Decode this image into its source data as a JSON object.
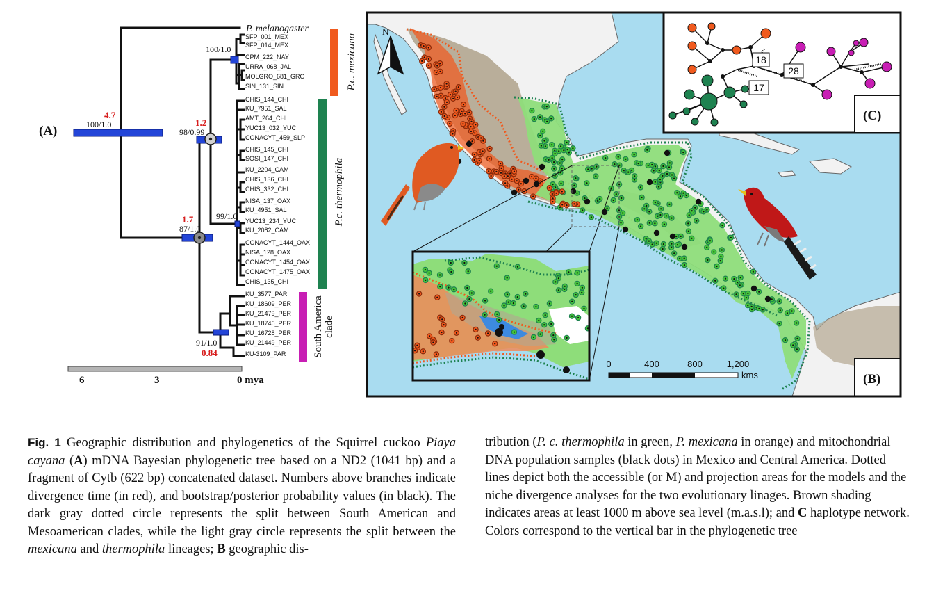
{
  "tree": {
    "panel_label": "(A)",
    "outgroup": "P. melanogaster",
    "taxa": [
      "SFP_001_MEX",
      "SFP_014_MEX",
      "CPM_222_NAY",
      "URRA_068_JAL",
      "MOLGRO_681_GRO",
      "SIN_131_SIN",
      "CHIS_144_CHI",
      "KU_7951_SAL",
      "AMT_264_CHI",
      "YUC13_032_YUC",
      "CONACYT_459_SLP",
      "CHIS_145_CHI",
      "SOSI_147_CHI",
      "KU_2204_CAM",
      "CHIS_136_CHI",
      "CHIS_332_CHI",
      "NISA_137_OAX",
      "KU_4951_SAL",
      "YUC13_234_YUC",
      "KU_2082_CAM",
      "CONACYT_1444_OAX",
      "NISA_128_OAX",
      "CONACYT_1454_OAX",
      "CONACYT_1475_OAX",
      "CHIS_135_CHI",
      "KU_3577_PAR",
      "KU_18609_PER",
      "KU_21479_PER",
      "KU_18746_PER",
      "KU_16728_PER",
      "KU_21449_PER",
      "KU-3109_PAR"
    ],
    "node_labels": [
      {
        "time": "4.7",
        "support": "100/1.0"
      },
      {
        "time": "1.2",
        "support": "98/0.99"
      },
      {
        "time": "1.7",
        "support": "87/1.0"
      },
      {
        "time": "",
        "support": "100/1.0"
      },
      {
        "time": "",
        "support": "99/1.0"
      },
      {
        "time": "0.84",
        "support": "91/1.0"
      }
    ],
    "clades": [
      {
        "label": "P.c. mexicana",
        "color": "#f05a1e"
      },
      {
        "label": "P.c. thermophila",
        "color": "#1e8250"
      },
      {
        "label": "South America\nclade",
        "color": "#c81eb4"
      }
    ],
    "scale_ticks": [
      "6",
      "3",
      "0 mya"
    ]
  },
  "map": {
    "panel_label": "(B)",
    "north": "N",
    "scale_ticks": [
      "0",
      "400",
      "800",
      "1,200"
    ],
    "scale_unit": "kms",
    "colors": {
      "sea": "#a9dcf0",
      "land": "#f4f4f4",
      "highland": "#b3a690",
      "mexicana": "#f05a1e",
      "thermophila": "#45c43a",
      "sample": "#111111"
    }
  },
  "network": {
    "panel_label": "(C)",
    "steps": [
      "18",
      "28",
      "17"
    ],
    "colors": {
      "mexicana": "#f05a1e",
      "thermophila": "#1e8250",
      "south_america": "#c81eb4"
    }
  },
  "caption": {
    "label": "Fig. 1",
    "left": [
      {
        "t": " Geographic distribution and phylogenetics of the Squirrel cuckoo ",
        "s": ""
      },
      {
        "t": "Piaya cayana",
        "s": "i"
      },
      {
        "t": " (",
        "s": ""
      },
      {
        "t": "A",
        "s": "b"
      },
      {
        "t": ") mDNA Bayesian phylogenetic tree based on a ND2 (1041 bp) and a fragment of Cytb (622 bp) concatenated dataset. Numbers above branches indicate divergence time (in red), and bootstrap/posterior probability values (in black). The dark gray dotted circle represents the split between South American and Mesoamerican clades, while the light gray circle represents the split between the ",
        "s": ""
      },
      {
        "t": "mexicana",
        "s": "i"
      },
      {
        "t": " and ",
        "s": ""
      },
      {
        "t": "thermophila",
        "s": "i"
      },
      {
        "t": " lineages; ",
        "s": ""
      },
      {
        "t": "B",
        "s": "b"
      },
      {
        "t": " geographic dis-",
        "s": ""
      }
    ],
    "right": [
      {
        "t": "tribution (",
        "s": ""
      },
      {
        "t": "P. c. thermophila",
        "s": "i"
      },
      {
        "t": " in green, ",
        "s": ""
      },
      {
        "t": "P. mexicana",
        "s": "i"
      },
      {
        "t": " in orange) and mitochondrial DNA population samples (black dots) in Mexico and Central America. Dotted lines depict both the accessible (or M) and projection areas for the models and the niche divergence analyses for the two evolutionary linages. Brown shading indicates areas at least 1000 m above sea level (m.a.s.l); and ",
        "s": ""
      },
      {
        "t": "C",
        "s": "b"
      },
      {
        "t": " haplotype network. Colors correspond to the vertical bar in the phylogenetic tree",
        "s": ""
      }
    ]
  }
}
